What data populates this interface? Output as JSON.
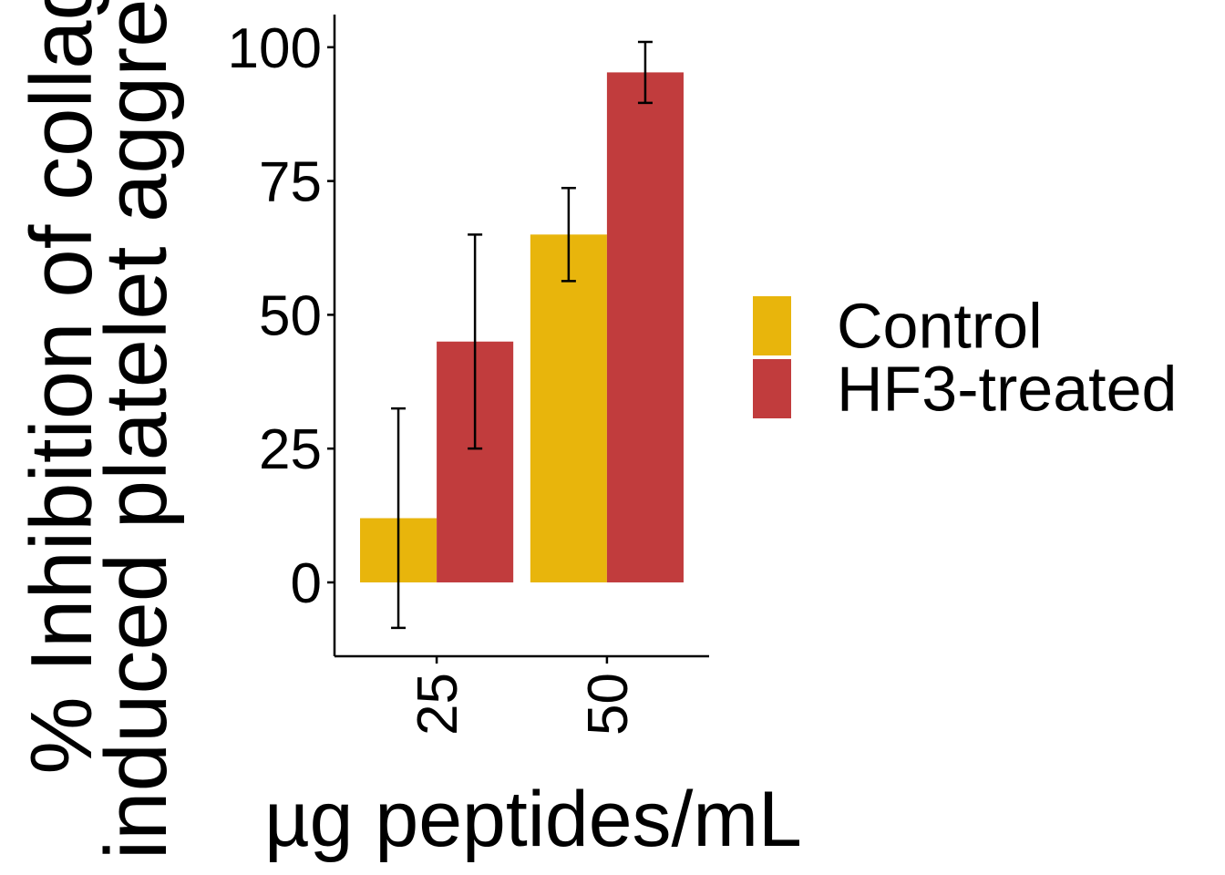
{
  "chart_data": {
    "type": "bar",
    "ylabel": [
      "% Inhibition of collagen-",
      "induced platelet aggregation"
    ],
    "xlabel": "µg peptides/mL",
    "categories": [
      "25",
      "50"
    ],
    "series": [
      {
        "name": "Control",
        "color": "#E8B50C",
        "values": [
          12,
          65
        ],
        "errors": [
          20.5,
          8.7
        ]
      },
      {
        "name": "HF3-treated",
        "color": "#C13C3D",
        "values": [
          45,
          95.3
        ],
        "errors": [
          20,
          5.7
        ]
      }
    ],
    "ylim": [
      -13.8,
      106.1
    ],
    "yticks": [
      0,
      25,
      50,
      75,
      100
    ],
    "grid": false,
    "legend": "right"
  }
}
